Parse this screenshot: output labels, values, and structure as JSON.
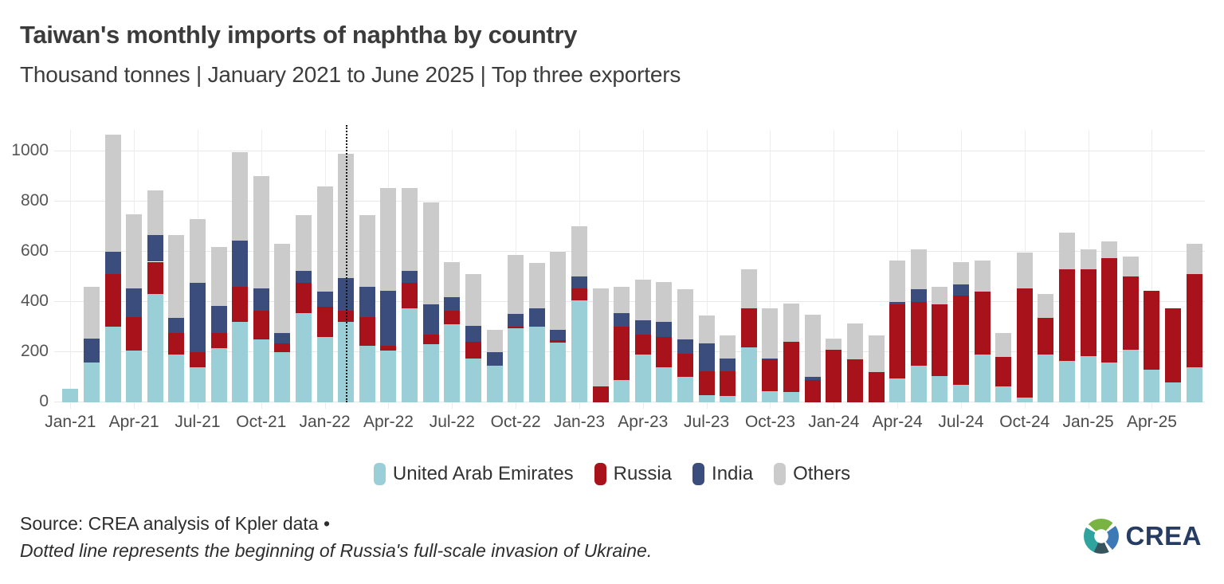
{
  "header": {
    "title": "Taiwan's monthly imports of naphtha by country",
    "subtitle": "Thousand tonnes | January 2021 to June 2025 | Top three exporters"
  },
  "colors": {
    "uae": "#9bcfd8",
    "russia": "#a8121a",
    "india": "#3a4d7d",
    "others": "#cbcbcb",
    "gridline": "#e8e8e8",
    "dotted_line": "#141414",
    "logo_navy": "#263c63"
  },
  "legend": [
    {
      "label": "United Arab Emirates",
      "color": "#9bcfd8"
    },
    {
      "label": "Russia",
      "color": "#a8121a"
    },
    {
      "label": "India",
      "color": "#3a4d7d"
    },
    {
      "label": "Others",
      "color": "#cbcbcb"
    }
  ],
  "footer": {
    "source_line": "Source: CREA analysis of Kpler data •",
    "note_line": "Dotted line represents the beginning of Russia's full-scale invasion of Ukraine.",
    "logo_text": "CREA"
  },
  "chart_data": {
    "type": "bar",
    "stacked": true,
    "title": "Taiwan's monthly imports of naphtha by country",
    "ylabel": "Thousand tonnes",
    "ylim": [
      0,
      1085
    ],
    "y_ticks": [
      0,
      200,
      400,
      600,
      800,
      1000
    ],
    "grid": true,
    "legend_position": "bottom",
    "categories": [
      "Jan-21",
      "Feb-21",
      "Mar-21",
      "Apr-21",
      "May-21",
      "Jun-21",
      "Jul-21",
      "Aug-21",
      "Sep-21",
      "Oct-21",
      "Nov-21",
      "Dec-21",
      "Jan-22",
      "Feb-22",
      "Mar-22",
      "Apr-22",
      "May-22",
      "Jun-22",
      "Jul-22",
      "Aug-22",
      "Sep-22",
      "Oct-22",
      "Nov-22",
      "Dec-22",
      "Jan-23",
      "Feb-23",
      "Mar-23",
      "Apr-23",
      "May-23",
      "Jun-23",
      "Jul-23",
      "Aug-23",
      "Sep-23",
      "Oct-23",
      "Nov-23",
      "Dec-23",
      "Jan-24",
      "Feb-24",
      "Mar-24",
      "Apr-24",
      "May-24",
      "Jun-24",
      "Jul-24",
      "Aug-24",
      "Sep-24",
      "Oct-24",
      "Nov-24",
      "Dec-24",
      "Jan-25",
      "Feb-25",
      "Mar-25",
      "Apr-25",
      "May-25",
      "Jun-25"
    ],
    "x_tick_labels": [
      "Jan-21",
      "Apr-21",
      "Jul-21",
      "Oct-21",
      "Jan-22",
      "Apr-22",
      "Jul-22",
      "Oct-22",
      "Jan-23",
      "Apr-23",
      "Jul-23",
      "Oct-23",
      "Jan-24",
      "Apr-24",
      "Jul-24",
      "Oct-24",
      "Jan-25",
      "Apr-25"
    ],
    "series": [
      {
        "name": "United Arab Emirates",
        "color": "#9bcfd8",
        "values": [
          55,
          160,
          300,
          205,
          430,
          190,
          140,
          215,
          320,
          250,
          200,
          355,
          260,
          320,
          225,
          205,
          375,
          232,
          310,
          175,
          147,
          295,
          300,
          237,
          405,
          0,
          90,
          190,
          140,
          100,
          30,
          25,
          220,
          45,
          40,
          0,
          0,
          0,
          0,
          95,
          145,
          105,
          70,
          190,
          65,
          20,
          190,
          165,
          185,
          160,
          210,
          130,
          80,
          140
        ]
      },
      {
        "name": "Russia",
        "color": "#a8121a",
        "values": [
          0,
          0,
          210,
          135,
          130,
          85,
          60,
          60,
          140,
          115,
          35,
          120,
          120,
          45,
          115,
          20,
          100,
          38,
          55,
          65,
          0,
          8,
          0,
          11,
          50,
          63,
          210,
          80,
          120,
          95,
          95,
          100,
          155,
          125,
          200,
          90,
          210,
          170,
          120,
          295,
          255,
          285,
          355,
          250,
          115,
          435,
          145,
          365,
          345,
          415,
          290,
          315,
          295,
          370
        ]
      },
      {
        "name": "India",
        "color": "#3a4d7d",
        "values": [
          0,
          95,
          90,
          115,
          105,
          60,
          275,
          110,
          185,
          90,
          40,
          50,
          60,
          130,
          120,
          220,
          48,
          120,
          55,
          65,
          53,
          50,
          75,
          42,
          45,
          0,
          55,
          57,
          60,
          55,
          110,
          50,
          0,
          5,
          0,
          12,
          0,
          0,
          0,
          10,
          50,
          0,
          45,
          0,
          0,
          0,
          0,
          0,
          0,
          0,
          0,
          0,
          0,
          0
        ]
      },
      {
        "name": "Others",
        "color": "#cbcbcb",
        "values": [
          0,
          205,
          465,
          295,
          180,
          330,
          255,
          235,
          350,
          445,
          355,
          220,
          420,
          495,
          285,
          410,
          330,
          407,
          140,
          205,
          90,
          235,
          180,
          310,
          200,
          392,
          105,
          163,
          160,
          200,
          110,
          90,
          155,
          200,
          155,
          248,
          45,
          145,
          145,
          165,
          160,
          70,
          90,
          125,
          95,
          140,
          95,
          145,
          80,
          65,
          80,
          0,
          0,
          120
        ]
      }
    ],
    "annotation": {
      "type": "vline",
      "at": "Feb-22",
      "style": "dotted",
      "meaning": "beginning of Russia's full-scale invasion of Ukraine"
    }
  }
}
